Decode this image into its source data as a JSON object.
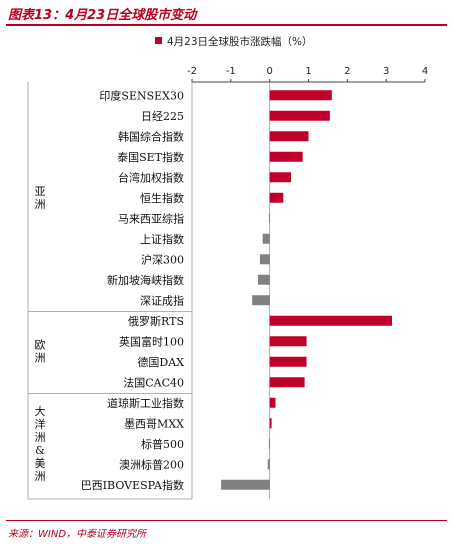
{
  "figure": {
    "title": "图表13：4月23日全球股市变动",
    "source": "来源：WIND，中泰证券研究所"
  },
  "colors": {
    "positive": "#c0002a",
    "negative": "#808080",
    "accent": "#b8001f"
  },
  "chart_data": {
    "type": "bar",
    "orientation": "horizontal",
    "legend_position": "top",
    "series": [
      {
        "name": "4月23日全球股市涨跌幅（%）",
        "values": [
          1.6,
          1.55,
          1.0,
          0.85,
          0.55,
          0.35,
          -0.02,
          -0.18,
          -0.25,
          -0.3,
          -0.45,
          3.15,
          0.95,
          0.95,
          0.9,
          0.15,
          0.05,
          -0.02,
          -0.05,
          -1.25
        ]
      }
    ],
    "categories": [
      "印度SENSEX30",
      "日经225",
      "韩国综合指数",
      "泰国SET指数",
      "台湾加权指数",
      "恒生指数",
      "马来西亚综指",
      "上证指数",
      "沪深300",
      "新加坡海峡指数",
      "深证成指",
      "俄罗斯RTS",
      "英国富时100",
      "德国DAX",
      "法国CAC40",
      "道琼斯工业指数",
      "墨西哥MXX",
      "标普500",
      "澳洲标普200",
      "巴西IBOVESPA指数"
    ],
    "groups": [
      {
        "label": "亚洲",
        "start": 0,
        "end": 10
      },
      {
        "label": "欧洲",
        "start": 11,
        "end": 14
      },
      {
        "label": "大洋洲&美洲",
        "start": 15,
        "end": 19
      }
    ],
    "xlim": [
      -2,
      4
    ],
    "xticks": [
      "-2",
      "-1",
      "0",
      "1",
      "2",
      "3",
      "4"
    ]
  }
}
